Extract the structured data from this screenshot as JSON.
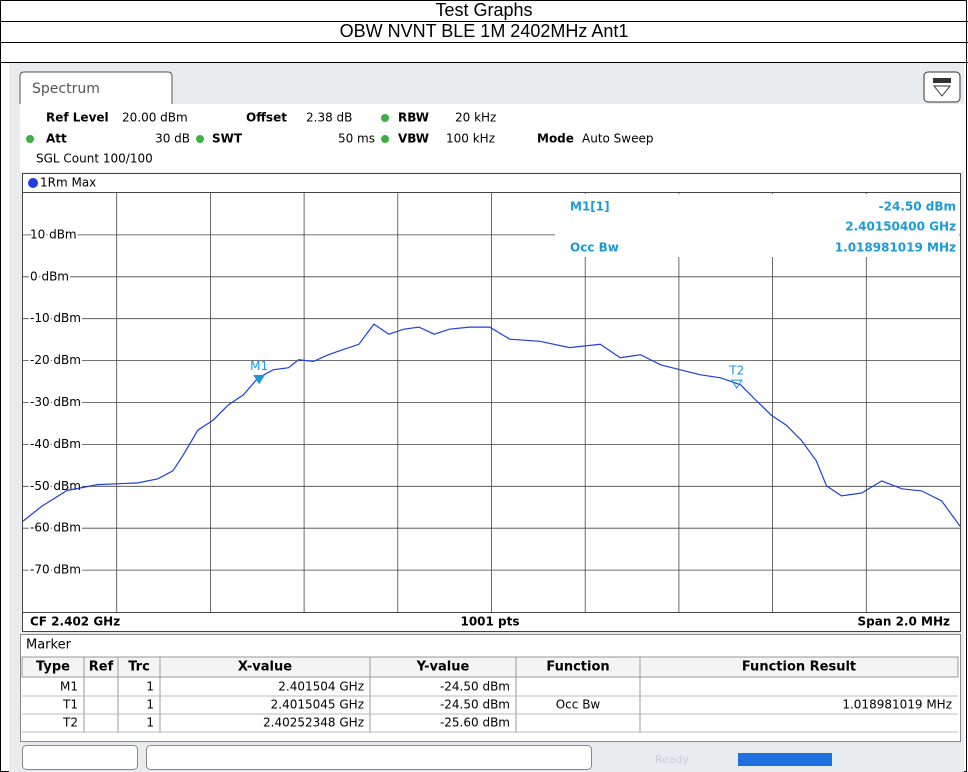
{
  "header": {
    "title": "Test Graphs",
    "subtitle": "OBW NVNT BLE 1M 2402MHz Ant1"
  },
  "tab": "Spectrum",
  "settings": [
    {
      "label": "Ref Level",
      "value": "20.00 dBm"
    },
    {
      "label": "Offset",
      "value": "2.38 dB"
    },
    {
      "label": "RBW",
      "value": "20 kHz"
    },
    {
      "label": "Att",
      "value": "30 dB"
    },
    {
      "label": "SWT",
      "value": "50 ms"
    },
    {
      "label": "VBW",
      "value": "100 kHz"
    },
    {
      "label": "Mode",
      "value": "Auto Sweep"
    }
  ],
  "sgl_count": "SGL Count 100/100",
  "trace_label": "1Rm Max",
  "readout": {
    "marker": "M1[1]",
    "level": "-24.50 dBm",
    "freq": "2.40150400 GHz",
    "function": "Occ Bw",
    "result": "1.018981019 MHz"
  },
  "footer": {
    "left": "CF 2.402 GHz",
    "center": "1001 pts",
    "right": "Span 2.0 MHz"
  },
  "chart_data": {
    "type": "line",
    "x": [
      2.401,
      2.401041,
      2.401094,
      2.401159,
      2.401245,
      2.401288,
      2.40132,
      2.401341,
      2.401373,
      2.401406,
      2.401438,
      2.40147,
      2.401502,
      2.401534,
      2.401567,
      2.401588,
      2.40162,
      2.401652,
      2.401685,
      2.401717,
      2.401749,
      2.401781,
      2.401813,
      2.401845,
      2.401878,
      2.40191,
      2.401953,
      2.401996,
      2.402039,
      2.402103,
      2.402167,
      2.402232,
      2.402275,
      2.402318,
      2.402361,
      2.402403,
      2.402446,
      2.402489,
      2.402532,
      2.402564,
      2.402597,
      2.402629,
      2.402661,
      2.402693,
      2.402715,
      2.402747,
      2.40279,
      2.402833,
      2.402876,
      2.402918,
      2.402961,
      2.403
    ],
    "series": [
      {
        "name": "1Rm Max",
        "color": "#1f3fe0",
        "values": [
          -58.3,
          -54.7,
          -51,
          -49.6,
          -49.2,
          -48.2,
          -46.3,
          -42.7,
          -36.6,
          -34.2,
          -30.6,
          -28.2,
          -24.1,
          -22.2,
          -21.7,
          -19.8,
          -20.2,
          -18.6,
          -17.3,
          -16.1,
          -11.3,
          -13.7,
          -12.5,
          -12,
          -13.7,
          -12.5,
          -12,
          -12,
          -14.9,
          -15.4,
          -16.9,
          -16.1,
          -19.3,
          -18.6,
          -21,
          -22.2,
          -23.4,
          -24.1,
          -25.8,
          -29.4,
          -33,
          -35.4,
          -39,
          -43.9,
          -49.9,
          -52.3,
          -51.6,
          -48.7,
          -50.6,
          -51.1,
          -53.5,
          -59.5
        ]
      }
    ],
    "xlim": [
      2.401,
      2.403
    ],
    "ylim": [
      -80,
      20
    ],
    "yticks": [
      {
        "value": 10,
        "label": "10 dBm"
      },
      {
        "value": 0,
        "label": "0 dBm"
      },
      {
        "value": -10,
        "label": "-10 dBm"
      },
      {
        "value": -20,
        "label": "-20 dBm"
      },
      {
        "value": -30,
        "label": "-30 dBm"
      },
      {
        "value": -40,
        "label": "-40 dBm"
      },
      {
        "value": -50,
        "label": "-50 dBm"
      },
      {
        "value": -60,
        "label": "-60 dBm"
      },
      {
        "value": -70,
        "label": "-70 dBm"
      }
    ],
    "grid": true,
    "markers": [
      {
        "label": "M1",
        "x": 2.401504,
        "y": -24.5,
        "filled": true
      },
      {
        "label": "T2",
        "x": 2.40252348,
        "y": -25.6,
        "filled": false
      }
    ]
  },
  "marker_table": {
    "title": "Marker",
    "columns": [
      {
        "key": "type",
        "label": "Type"
      },
      {
        "key": "ref",
        "label": "Ref"
      },
      {
        "key": "trc",
        "label": "Trc"
      },
      {
        "key": "x",
        "label": "X-value"
      },
      {
        "key": "y",
        "label": "Y-value"
      },
      {
        "key": "function",
        "label": "Function"
      },
      {
        "key": "result",
        "label": "Function Result"
      }
    ],
    "rows": [
      {
        "type": "M1",
        "trc": "1",
        "x": "2.401504 GHz",
        "y": "-24.50 dBm"
      },
      {
        "type": "T1",
        "trc": "1",
        "x": "2.4015045 GHz",
        "y": "-24.50 dBm",
        "function": "Occ Bw",
        "result": "1.018981019 MHz"
      },
      {
        "type": "T2",
        "trc": "1",
        "x": "2.40252348 GHz",
        "y": "-25.60 dBm"
      }
    ]
  },
  "status": "Ready"
}
